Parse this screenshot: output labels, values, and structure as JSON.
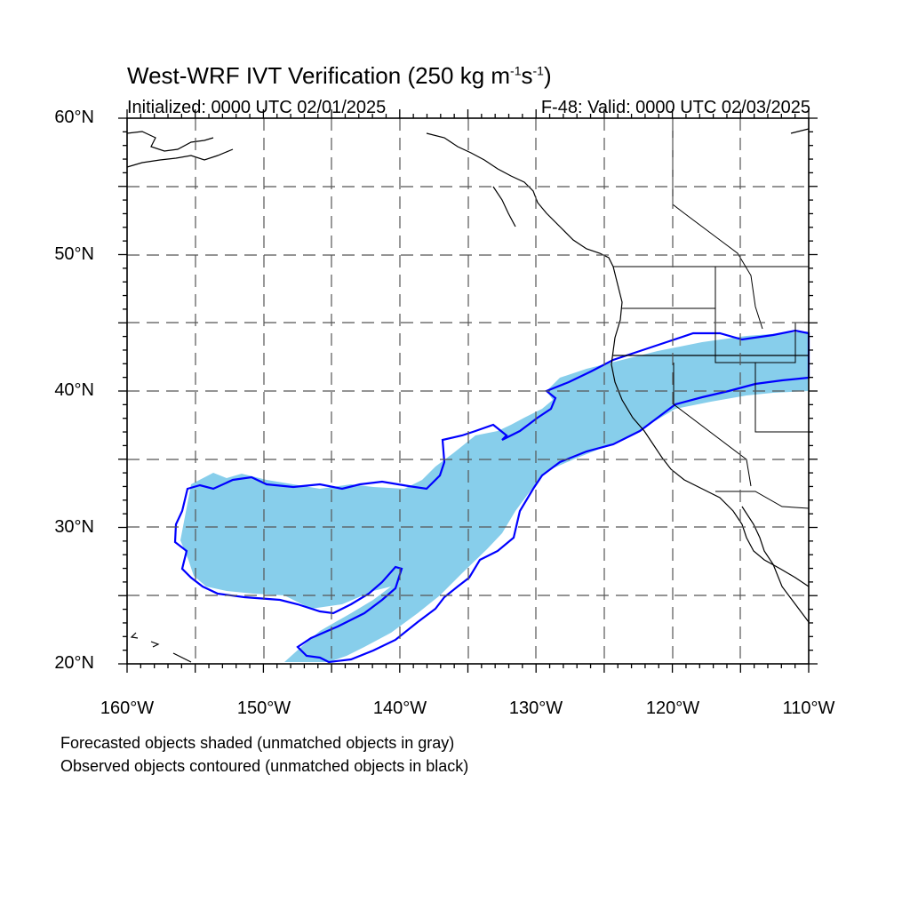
{
  "title": {
    "main": "West-WRF IVT Verification (250 kg m",
    "sup1": "-1",
    "mid": "s",
    "sup2": "-1",
    "end": ")"
  },
  "initialized": "Initialized: 0000 UTC 02/01/2025",
  "valid": "F-48: Valid: 0000 UTC 02/03/2025",
  "lat_labels": [
    "60°N",
    "50°N",
    "40°N",
    "30°N",
    "20°N"
  ],
  "lon_labels": [
    "160°W",
    "150°W",
    "140°W",
    "130°W",
    "120°W",
    "110°W"
  ],
  "notes": [
    "Forecasted objects shaded (unmatched objects in gray)",
    "Observed objects contoured (unmatched objects in black)"
  ],
  "colors": {
    "forecast_fill": "#87CEEB",
    "observed_contour": "#0000FF",
    "coast": "#000000",
    "grid": "#555555"
  },
  "map_extent": {
    "lon_min": -160,
    "lon_max": -110,
    "lat_min": 20,
    "lat_max": 60
  },
  "grid_interval_deg": 5
}
